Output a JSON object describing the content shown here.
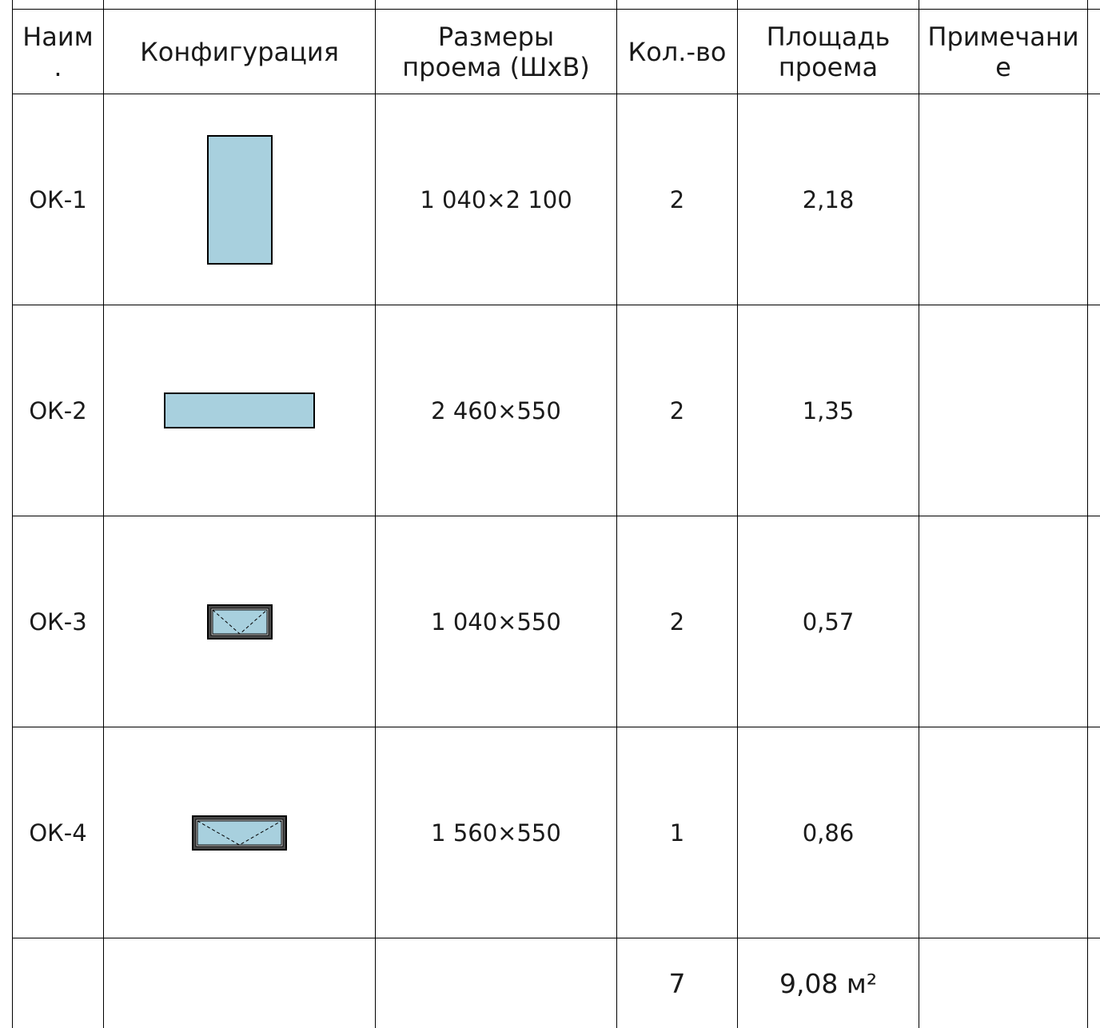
{
  "headers": {
    "name": [
      "Наим",
      "."
    ],
    "configuration": "Конфигурация",
    "size": [
      "Размеры",
      "проема (ШхВ)"
    ],
    "count": "Кол.-во",
    "area": [
      "Площадь",
      "проема"
    ],
    "note": [
      "Примечани",
      "е"
    ]
  },
  "rows": [
    {
      "name": "ОК-1",
      "size": "1 040×2 100",
      "count": "2",
      "area": "2,18",
      "note": "",
      "shape": "tall-rectangle-window"
    },
    {
      "name": "ОК-2",
      "size": "2 460×550",
      "count": "2",
      "area": "1,35",
      "note": "",
      "shape": "wide-rectangle-window"
    },
    {
      "name": "ОК-3",
      "size": "1 040×550",
      "count": "2",
      "area": "0,57",
      "note": "",
      "shape": "bottom-hung-window"
    },
    {
      "name": "ОК-4",
      "size": "1 560×550",
      "count": "1",
      "area": "0,86",
      "note": "",
      "shape": "bottom-hung-window"
    }
  ],
  "totals": {
    "count": "7",
    "area": "9,08 м²"
  },
  "colors": {
    "glass": "#a8d0de",
    "line": "#000000",
    "frame": "#4a4a4a"
  }
}
